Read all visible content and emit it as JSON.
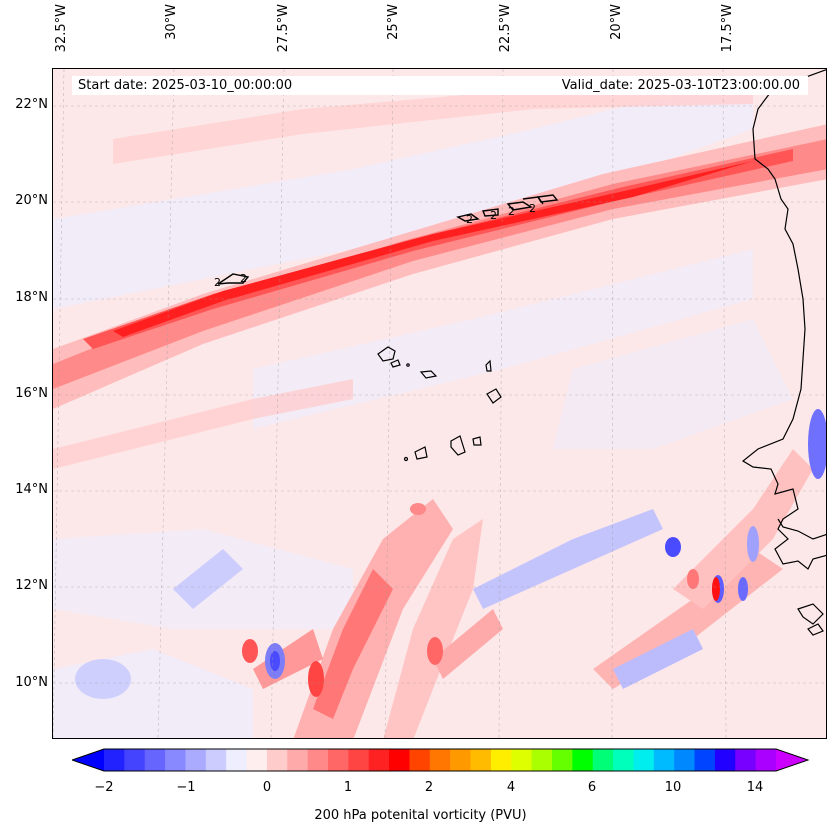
{
  "map": {
    "start_date": "Start date: 2025-03-10_00:00:00",
    "valid_date": "Valid_date: 2025-03-10T23:00:00.00",
    "lat_labels": [
      "22°N",
      "20°N",
      "18°N",
      "16°N",
      "14°N",
      "12°N",
      "10°N"
    ],
    "lon_labels": [
      "32.5°W",
      "30°W",
      "27.5°W",
      "25°W",
      "22.5°W",
      "20°W",
      "17.5°W"
    ],
    "contour_labels": [
      "2",
      "2",
      "2",
      "2",
      "2",
      "2"
    ]
  },
  "colorbar": {
    "label": "200 hPa potenital vorticity (PVU)",
    "ticks": [
      "−2",
      "−1",
      "0",
      "1",
      "2",
      "4",
      "6",
      "10",
      "14"
    ],
    "colors": [
      "#0000ff",
      "#2222ff",
      "#4444ff",
      "#6666ff",
      "#8888ff",
      "#aaaaff",
      "#ccccff",
      "#eeeeff",
      "#ffeeee",
      "#ffcccc",
      "#ffaaaa",
      "#ff8888",
      "#ff6666",
      "#ff4444",
      "#ff2222",
      "#ff0000",
      "#ff4400",
      "#ff7700",
      "#ff9900",
      "#ffbb00",
      "#ffee00",
      "#ddff00",
      "#aaff00",
      "#66ff00",
      "#00ff00",
      "#00ff77",
      "#00ffbb",
      "#00eeee",
      "#00bbff",
      "#0088ff",
      "#0044ff",
      "#2200ff",
      "#7700ff",
      "#aa00ff",
      "#cc00ff"
    ]
  }
}
